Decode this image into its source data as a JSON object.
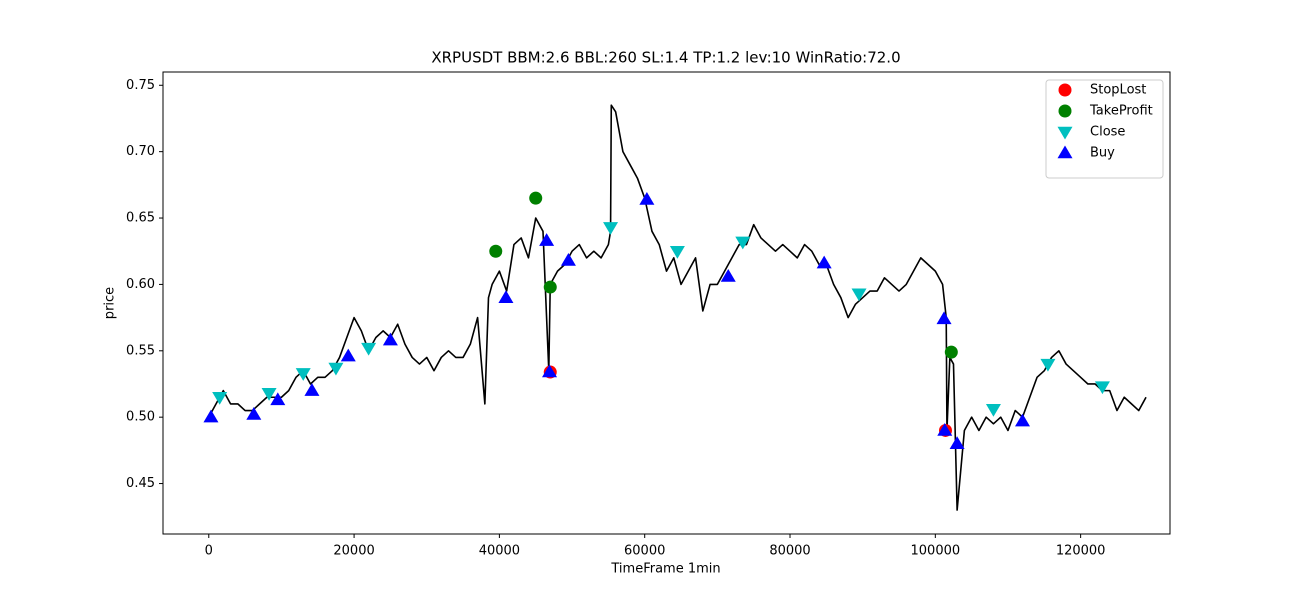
{
  "chart_data": {
    "type": "line",
    "title": "XRPUSDT BBM:2.6 BBL:260 SL:1.4 TP:1.2 lev:10 WinRatio:72.0",
    "xlabel": "TimeFrame 1min",
    "ylabel": "price",
    "xlim": [
      -6300,
      132300
    ],
    "ylim": [
      0.412,
      0.76
    ],
    "xticks": [
      0,
      20000,
      40000,
      60000,
      80000,
      100000,
      120000
    ],
    "yticks": [
      0.45,
      {
        "value": 0.5,
        "label": "0.50"
      },
      0.55,
      {
        "value": 0.6,
        "label": "0.60"
      },
      0.65,
      {
        "value": 0.7,
        "label": "0.70"
      },
      0.75
    ],
    "color": "#000000",
    "legend": "upper right",
    "x": [
      0,
      1000,
      2000,
      3000,
      4000,
      5000,
      6000,
      7000,
      8000,
      9000,
      10000,
      11000,
      12000,
      13000,
      14000,
      15000,
      16000,
      17000,
      18000,
      19000,
      20000,
      21000,
      22000,
      23000,
      24000,
      25000,
      26000,
      27000,
      28000,
      29000,
      30000,
      31000,
      32000,
      33000,
      34000,
      35000,
      36000,
      37000,
      38000,
      38500,
      39000,
      40000,
      41000,
      42000,
      43000,
      44000,
      45000,
      46000,
      46800,
      47000,
      48000,
      49000,
      50000,
      51000,
      52000,
      53000,
      54000,
      55000,
      55300,
      55400,
      56000,
      57000,
      58000,
      59000,
      60000,
      61000,
      62000,
      63000,
      64000,
      65000,
      66000,
      67000,
      68000,
      69000,
      70000,
      71000,
      72000,
      73000,
      74000,
      75000,
      76000,
      77000,
      78000,
      79000,
      80000,
      81000,
      82000,
      83000,
      84000,
      85000,
      86000,
      87000,
      88000,
      89000,
      90000,
      91000,
      92000,
      93000,
      94000,
      95000,
      96000,
      97000,
      98000,
      99000,
      100000,
      101000,
      101500,
      101600,
      102000,
      102500,
      103000,
      104000,
      105000,
      106000,
      107000,
      108000,
      109000,
      110000,
      111000,
      112000,
      113000,
      114000,
      115000,
      116000,
      117000,
      118000,
      119000,
      120000,
      121000,
      122000,
      123000,
      124000,
      125000,
      126000,
      127000,
      128000,
      129000
    ],
    "values": [
      0.5,
      0.51,
      0.52,
      0.51,
      0.51,
      0.505,
      0.505,
      0.51,
      0.515,
      0.515,
      0.515,
      0.52,
      0.53,
      0.535,
      0.525,
      0.53,
      0.53,
      0.535,
      0.545,
      0.56,
      0.575,
      0.565,
      0.55,
      0.56,
      0.565,
      0.56,
      0.57,
      0.555,
      0.545,
      0.54,
      0.545,
      0.535,
      0.545,
      0.55,
      0.545,
      0.545,
      0.555,
      0.575,
      0.51,
      0.59,
      0.6,
      0.61,
      0.595,
      0.63,
      0.635,
      0.62,
      0.65,
      0.64,
      0.535,
      0.6,
      0.61,
      0.615,
      0.625,
      0.63,
      0.62,
      0.625,
      0.62,
      0.63,
      0.64,
      0.735,
      0.73,
      0.7,
      0.69,
      0.68,
      0.665,
      0.64,
      0.63,
      0.61,
      0.62,
      0.6,
      0.61,
      0.62,
      0.58,
      0.6,
      0.6,
      0.61,
      0.62,
      0.63,
      0.63,
      0.645,
      0.635,
      0.63,
      0.625,
      0.63,
      0.625,
      0.62,
      0.63,
      0.625,
      0.615,
      0.615,
      0.6,
      0.59,
      0.575,
      0.585,
      0.59,
      0.595,
      0.595,
      0.605,
      0.6,
      0.595,
      0.6,
      0.61,
      0.62,
      0.615,
      0.61,
      0.6,
      0.575,
      0.49,
      0.545,
      0.54,
      0.43,
      0.49,
      0.5,
      0.49,
      0.5,
      0.495,
      0.5,
      0.49,
      0.505,
      0.5,
      0.515,
      0.53,
      0.535,
      0.545,
      0.55,
      0.54,
      0.535,
      0.53,
      0.525,
      0.525,
      0.52,
      0.52,
      0.505,
      0.515,
      0.51,
      0.505,
      0.515
    ],
    "markers": [
      {
        "name": "StopLost",
        "color": "#ff0000",
        "marker": "circle",
        "x": [
          47000,
          101400
        ],
        "values": [
          0.534,
          0.49
        ]
      },
      {
        "name": "TakeProfit",
        "color": "#008000",
        "marker": "circle",
        "x": [
          39500,
          45000,
          47000,
          102200
        ],
        "values": [
          0.625,
          0.665,
          0.598,
          0.549
        ]
      },
      {
        "name": "Close",
        "color": "#00bfbf",
        "marker": "triangle-down",
        "x": [
          1500,
          8300,
          13000,
          17500,
          22000,
          55300,
          64500,
          73500,
          89500,
          108000,
          115500,
          123000
        ],
        "values": [
          0.515,
          0.518,
          0.533,
          0.537,
          0.552,
          0.643,
          0.625,
          0.632,
          0.593,
          0.506,
          0.54,
          0.523
        ]
      },
      {
        "name": "Buy",
        "color": "#0000ff",
        "marker": "triangle-up",
        "x": [
          300,
          6200,
          9500,
          14200,
          19200,
          25000,
          40900,
          46500,
          46900,
          49500,
          60300,
          71500,
          84700,
          101200,
          101300,
          103000,
          112000
        ],
        "values": [
          0.5,
          0.502,
          0.513,
          0.52,
          0.546,
          0.558,
          0.59,
          0.633,
          0.534,
          0.618,
          0.664,
          0.606,
          0.616,
          0.574,
          0.49,
          0.48,
          0.497
        ]
      }
    ]
  }
}
